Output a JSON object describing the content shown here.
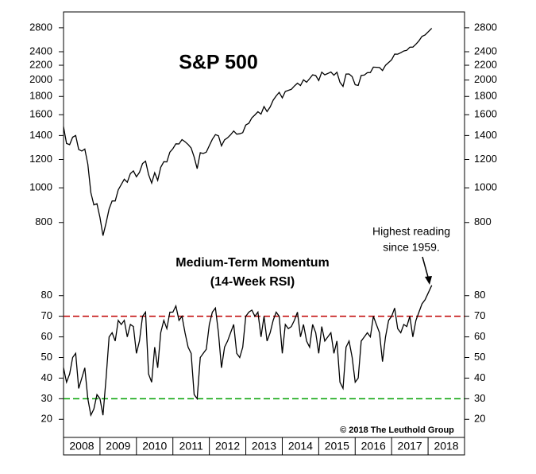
{
  "chart_data": [
    {
      "type": "line",
      "title": "S&P 500",
      "log_scale": true,
      "color": "#000000",
      "xlim": [
        2008,
        2019
      ],
      "ylim": [
        600,
        3100
      ],
      "yticks": [
        800,
        1000,
        1200,
        1400,
        1600,
        1800,
        2000,
        2200,
        2400,
        2800
      ],
      "x": [
        2008,
        2008.083,
        2008.167,
        2008.25,
        2008.333,
        2008.417,
        2008.5,
        2008.583,
        2008.667,
        2008.75,
        2008.833,
        2008.917,
        2009,
        2009.083,
        2009.167,
        2009.25,
        2009.333,
        2009.417,
        2009.5,
        2009.583,
        2009.667,
        2009.75,
        2009.833,
        2009.917,
        2010,
        2010.083,
        2010.167,
        2010.25,
        2010.333,
        2010.417,
        2010.5,
        2010.583,
        2010.667,
        2010.75,
        2010.833,
        2010.917,
        2011,
        2011.083,
        2011.167,
        2011.25,
        2011.333,
        2011.417,
        2011.5,
        2011.583,
        2011.667,
        2011.75,
        2011.833,
        2011.917,
        2012,
        2012.083,
        2012.167,
        2012.25,
        2012.333,
        2012.417,
        2012.5,
        2012.583,
        2012.667,
        2012.75,
        2012.833,
        2012.917,
        2013,
        2013.083,
        2013.167,
        2013.25,
        2013.333,
        2013.417,
        2013.5,
        2013.583,
        2013.667,
        2013.75,
        2013.833,
        2013.917,
        2014,
        2014.083,
        2014.167,
        2014.25,
        2014.333,
        2014.417,
        2014.5,
        2014.583,
        2014.667,
        2014.75,
        2014.833,
        2014.917,
        2015,
        2015.083,
        2015.167,
        2015.25,
        2015.333,
        2015.417,
        2015.5,
        2015.583,
        2015.667,
        2015.75,
        2015.833,
        2015.917,
        2016,
        2016.083,
        2016.167,
        2016.25,
        2016.333,
        2016.417,
        2016.5,
        2016.583,
        2016.667,
        2016.75,
        2016.833,
        2016.917,
        2017,
        2017.083,
        2017.167,
        2017.25,
        2017.333,
        2017.417,
        2017.5,
        2017.583,
        2017.667,
        2017.75,
        2017.833,
        2017.917,
        2018.1
      ],
      "values": [
        1480,
        1330,
        1320,
        1385,
        1400,
        1280,
        1267,
        1283,
        1165,
        970,
        896,
        903,
        826,
        735,
        798,
        873,
        919,
        919,
        987,
        1021,
        1057,
        1036,
        1096,
        1115,
        1074,
        1104,
        1169,
        1187,
        1089,
        1031,
        1102,
        1049,
        1141,
        1183,
        1181,
        1258,
        1286,
        1327,
        1326,
        1364,
        1345,
        1321,
        1292,
        1219,
        1131,
        1253,
        1247,
        1258,
        1312,
        1366,
        1408,
        1398,
        1310,
        1362,
        1379,
        1406,
        1441,
        1412,
        1416,
        1426,
        1498,
        1515,
        1569,
        1598,
        1631,
        1606,
        1686,
        1633,
        1682,
        1757,
        1806,
        1848,
        1783,
        1859,
        1872,
        1884,
        1924,
        1960,
        1931,
        2003,
        1972,
        2018,
        2068,
        2059,
        1995,
        2105,
        2068,
        2086,
        2107,
        2063,
        2104,
        1972,
        1920,
        2079,
        2080,
        2044,
        1940,
        1932,
        2060,
        2065,
        2097,
        2099,
        2174,
        2171,
        2168,
        2126,
        2199,
        2239,
        2279,
        2364,
        2363,
        2384,
        2412,
        2423,
        2470,
        2472,
        2519,
        2575,
        2648,
        2674,
        2790
      ]
    },
    {
      "type": "line",
      "title": "Medium-Term Momentum",
      "subtitle": "(14-Week RSI)",
      "color": "#000000",
      "annotations": [
        "Highest reading",
        "since 1959."
      ],
      "source": "© 2018 The Leuthold Group",
      "xlim": [
        2008,
        2019
      ],
      "xticks": [
        2008,
        2009,
        2010,
        2011,
        2012,
        2013,
        2014,
        2015,
        2016,
        2017,
        2018
      ],
      "ylim": [
        12,
        88
      ],
      "yticks": [
        20,
        30,
        40,
        50,
        60,
        70,
        80
      ],
      "reference_lines": [
        {
          "value": 70,
          "color": "#c00000"
        },
        {
          "value": 30,
          "color": "#00a000"
        }
      ],
      "x": [
        2008,
        2008.083,
        2008.167,
        2008.25,
        2008.333,
        2008.417,
        2008.5,
        2008.583,
        2008.667,
        2008.75,
        2008.833,
        2008.917,
        2009,
        2009.083,
        2009.167,
        2009.25,
        2009.333,
        2009.417,
        2009.5,
        2009.583,
        2009.667,
        2009.75,
        2009.833,
        2009.917,
        2010,
        2010.083,
        2010.167,
        2010.25,
        2010.333,
        2010.417,
        2010.5,
        2010.583,
        2010.667,
        2010.75,
        2010.833,
        2010.917,
        2011,
        2011.083,
        2011.167,
        2011.25,
        2011.333,
        2011.417,
        2011.5,
        2011.583,
        2011.667,
        2011.75,
        2011.833,
        2011.917,
        2012,
        2012.083,
        2012.167,
        2012.25,
        2012.333,
        2012.417,
        2012.5,
        2012.583,
        2012.667,
        2012.75,
        2012.833,
        2012.917,
        2013,
        2013.083,
        2013.167,
        2013.25,
        2013.333,
        2013.417,
        2013.5,
        2013.583,
        2013.667,
        2013.75,
        2013.833,
        2013.917,
        2014,
        2014.083,
        2014.167,
        2014.25,
        2014.333,
        2014.417,
        2014.5,
        2014.583,
        2014.667,
        2014.75,
        2014.833,
        2014.917,
        2015,
        2015.083,
        2015.167,
        2015.25,
        2015.333,
        2015.417,
        2015.5,
        2015.583,
        2015.667,
        2015.75,
        2015.833,
        2015.917,
        2016,
        2016.083,
        2016.167,
        2016.25,
        2016.333,
        2016.417,
        2016.5,
        2016.583,
        2016.667,
        2016.75,
        2016.833,
        2016.917,
        2017,
        2017.083,
        2017.167,
        2017.25,
        2017.333,
        2017.417,
        2017.5,
        2017.583,
        2017.667,
        2017.75,
        2017.833,
        2017.917,
        2018.1
      ],
      "values": [
        45,
        38,
        42,
        50,
        52,
        35,
        40,
        45,
        30,
        22,
        25,
        32,
        30,
        22,
        40,
        60,
        62,
        58,
        68,
        66,
        68,
        60,
        66,
        65,
        52,
        58,
        70,
        72,
        42,
        38,
        55,
        45,
        62,
        68,
        64,
        72,
        72,
        75,
        68,
        70,
        62,
        55,
        52,
        32,
        30,
        50,
        52,
        54,
        66,
        72,
        74,
        62,
        45,
        55,
        58,
        62,
        66,
        52,
        50,
        55,
        70,
        72,
        73,
        70,
        72,
        60,
        70,
        58,
        62,
        68,
        72,
        70,
        52,
        66,
        64,
        65,
        68,
        72,
        60,
        66,
        58,
        55,
        66,
        62,
        52,
        65,
        58,
        60,
        62,
        52,
        58,
        38,
        35,
        55,
        58,
        50,
        38,
        40,
        58,
        60,
        62,
        60,
        70,
        66,
        62,
        48,
        60,
        68,
        70,
        74,
        64,
        62,
        66,
        65,
        70,
        60,
        68,
        72,
        76,
        78,
        85
      ]
    }
  ]
}
